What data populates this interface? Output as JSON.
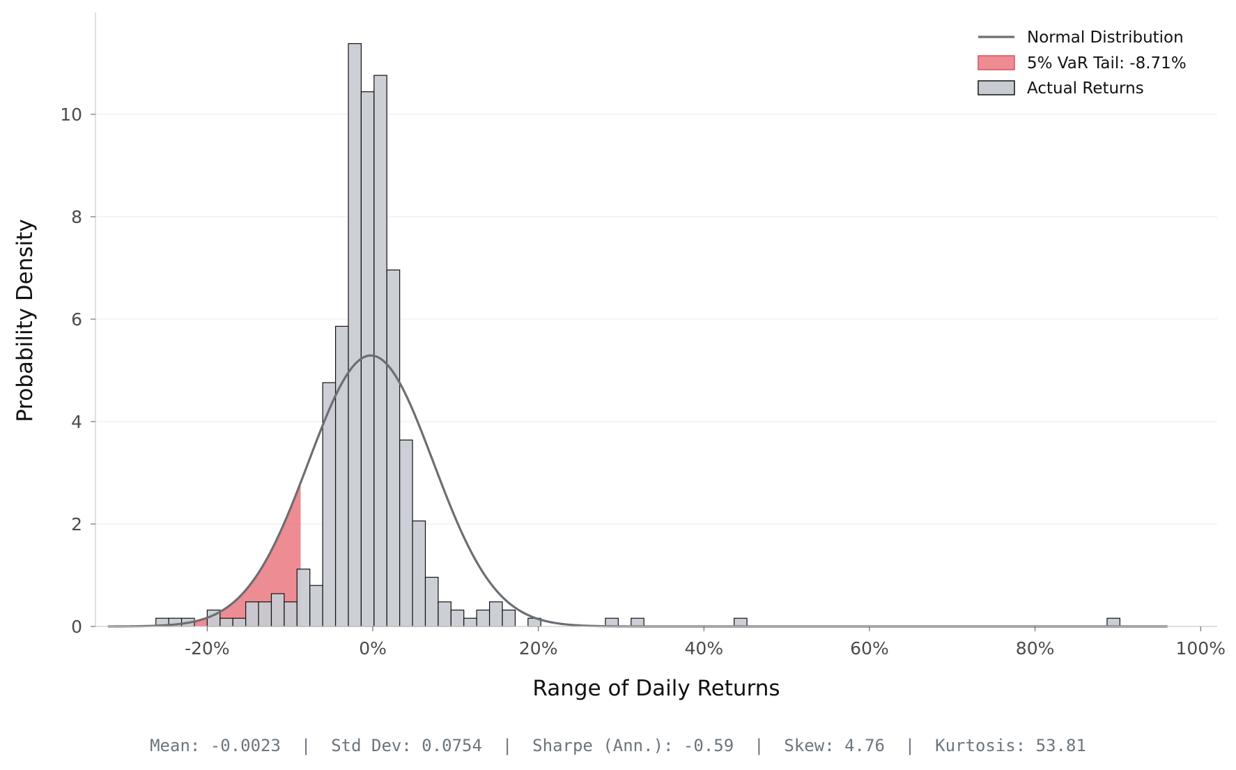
{
  "chart_data": {
    "type": "bar",
    "xlabel": "Range of Daily Returns",
    "ylabel": "Probability Density",
    "xlim": [
      -0.335,
      1.02
    ],
    "ylim": [
      0,
      12
    ],
    "x_ticks": [
      -0.2,
      0,
      0.2,
      0.4,
      0.6,
      0.8,
      1.0
    ],
    "x_tick_labels": [
      "-20%",
      "0%",
      "20%",
      "40%",
      "60%",
      "80%",
      "100%"
    ],
    "y_ticks": [
      0,
      2,
      4,
      6,
      8,
      10
    ],
    "y_tick_labels": [
      "0",
      "2",
      "4",
      "6",
      "8",
      "10"
    ],
    "grid": "horizontal",
    "legend_position": "top-right",
    "histogram": {
      "name": "Actual Returns",
      "color": "#c8ccd2",
      "edge_color": "#111111",
      "bin_width": 0.0155,
      "bins": [
        [
          -0.262,
          0.16
        ],
        [
          -0.2465,
          0.16
        ],
        [
          -0.231,
          0.16
        ],
        [
          -0.2,
          0.32
        ],
        [
          -0.1845,
          0.16
        ],
        [
          -0.169,
          0.16
        ],
        [
          -0.1535,
          0.48
        ],
        [
          -0.138,
          0.48
        ],
        [
          -0.1225,
          0.64
        ],
        [
          -0.107,
          0.48
        ],
        [
          -0.0915,
          1.12
        ],
        [
          -0.076,
          0.8
        ],
        [
          -0.0605,
          4.76
        ],
        [
          -0.045,
          5.86
        ],
        [
          -0.0295,
          11.38
        ],
        [
          -0.014,
          10.44
        ],
        [
          0.0015,
          10.76
        ],
        [
          0.017,
          6.96
        ],
        [
          0.0325,
          3.64
        ],
        [
          0.048,
          2.06
        ],
        [
          0.0635,
          0.96
        ],
        [
          0.079,
          0.48
        ],
        [
          0.0945,
          0.32
        ],
        [
          0.11,
          0.16
        ],
        [
          0.1255,
          0.32
        ],
        [
          0.141,
          0.48
        ],
        [
          0.1565,
          0.32
        ],
        [
          0.1875,
          0.16
        ],
        [
          0.281,
          0.16
        ],
        [
          0.312,
          0.16
        ],
        [
          0.4365,
          0.16
        ],
        [
          0.887,
          0.16
        ]
      ]
    },
    "normal_distribution": {
      "name": "Normal Distribution",
      "color": "#6b6e73",
      "mean": -0.0023,
      "std": 0.0754,
      "x_range": [
        -0.32,
        0.96
      ]
    },
    "var_tail": {
      "name": "5% VaR Tail: -8.71%",
      "threshold": -0.0871,
      "color": "#e8606b"
    },
    "legend": [
      "Normal Distribution",
      "5% VaR Tail: -8.71%",
      "Actual Returns"
    ],
    "footer_text": "Mean: -0.0023  |  Std Dev: 0.0754  |  Sharpe (Ann.): -0.59  |  Skew: 4.76  |  Kurtosis: 53.81"
  }
}
